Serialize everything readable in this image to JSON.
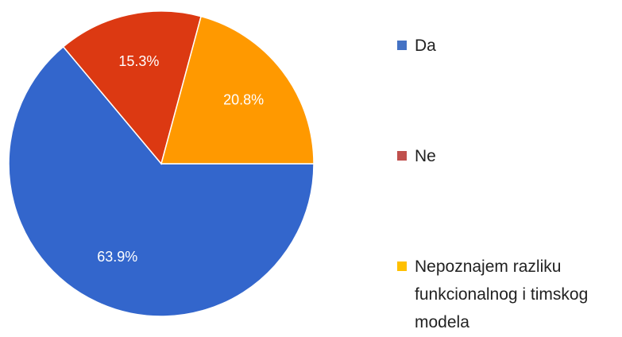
{
  "chart_data": {
    "type": "pie",
    "categories": [
      "Da",
      "Ne",
      "Nepoznajem razliku funkcionalnog i timskog modela"
    ],
    "values": [
      63.9,
      15.3,
      20.8
    ],
    "value_labels": [
      "63.9%",
      "15.3%",
      "20.8%"
    ],
    "colors": [
      "#3366cc",
      "#dc3912",
      "#ff9900"
    ],
    "legend_colors": [
      "#4472c4",
      "#c0504d",
      "#ffc000"
    ],
    "legend": "right"
  }
}
